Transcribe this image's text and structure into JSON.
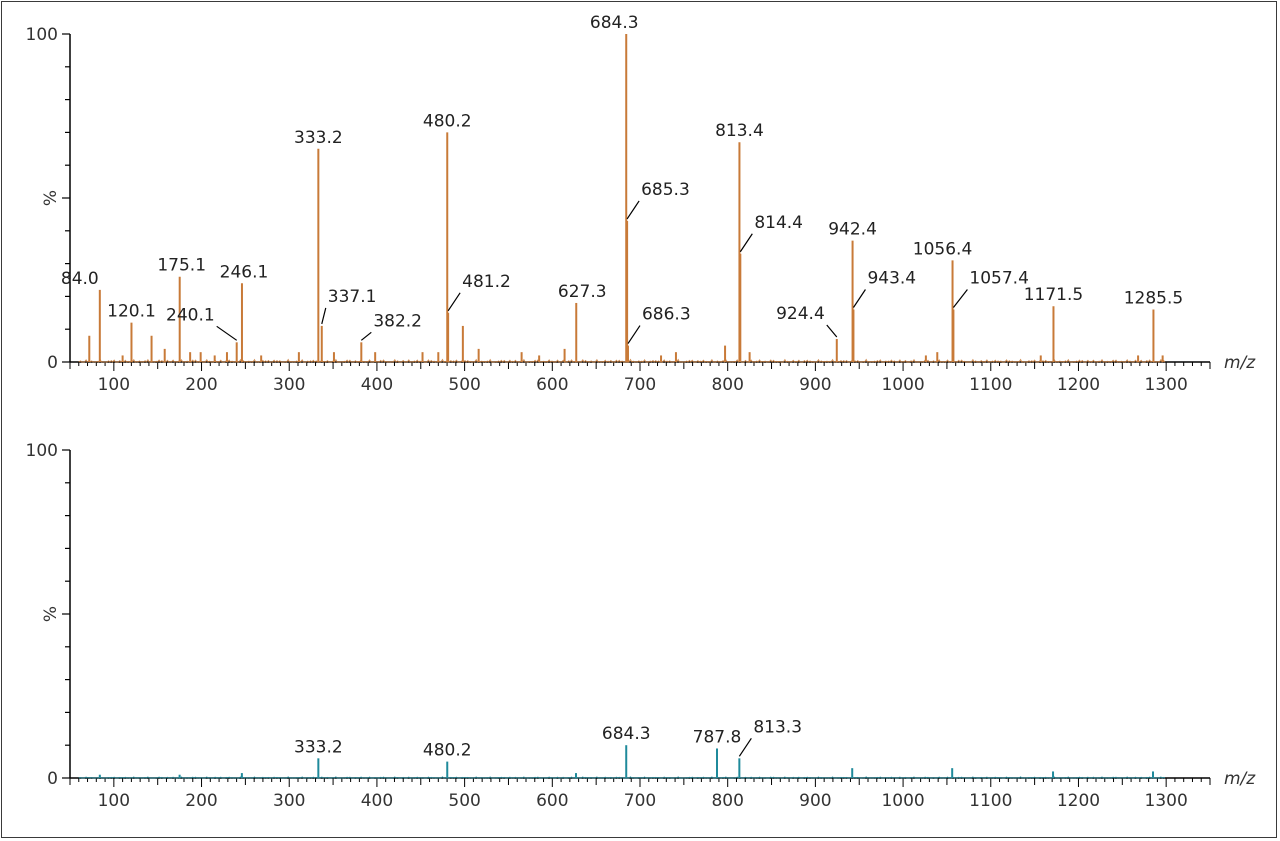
{
  "chart_data": [
    {
      "type": "line",
      "panel": "top",
      "x_unit_label": "m/z",
      "y_unit_label": "%",
      "xlim": [
        50,
        1350
      ],
      "ylim": [
        0,
        100
      ],
      "x_ticks": [
        100,
        200,
        300,
        400,
        500,
        600,
        700,
        800,
        900,
        1000,
        1100,
        1200,
        1300
      ],
      "y_ticks": [
        0,
        100
      ],
      "series_color": "#c87a38",
      "peaks": [
        {
          "mz": 684.3,
          "intensity": 100,
          "label": "684.3"
        },
        {
          "mz": 480.2,
          "intensity": 70,
          "label": "480.2"
        },
        {
          "mz": 333.2,
          "intensity": 65,
          "label": "333.2"
        },
        {
          "mz": 813.4,
          "intensity": 67,
          "label": "813.4"
        },
        {
          "mz": 685.3,
          "intensity": 43,
          "label": "685.3"
        },
        {
          "mz": 942.4,
          "intensity": 37,
          "label": "942.4"
        },
        {
          "mz": 814.4,
          "intensity": 33,
          "label": "814.4"
        },
        {
          "mz": 1056.4,
          "intensity": 31,
          "label": "1056.4"
        },
        {
          "mz": 175.1,
          "intensity": 26,
          "label": "175.1"
        },
        {
          "mz": 246.1,
          "intensity": 24,
          "label": "246.1"
        },
        {
          "mz": 84.0,
          "intensity": 22,
          "label": "84.0"
        },
        {
          "mz": 627.3,
          "intensity": 18,
          "label": "627.3"
        },
        {
          "mz": 1171.5,
          "intensity": 17,
          "label": "1171.5"
        },
        {
          "mz": 1285.5,
          "intensity": 16,
          "label": "1285.5"
        },
        {
          "mz": 943.4,
          "intensity": 16,
          "label": "943.4"
        },
        {
          "mz": 1057.4,
          "intensity": 16,
          "label": "1057.4"
        },
        {
          "mz": 481.2,
          "intensity": 15,
          "label": "481.2"
        },
        {
          "mz": 120.1,
          "intensity": 12,
          "label": "120.1"
        },
        {
          "mz": 337.1,
          "intensity": 11,
          "label": "337.1"
        },
        {
          "mz": 924.4,
          "intensity": 7,
          "label": "924.4"
        },
        {
          "mz": 240.1,
          "intensity": 6,
          "label": "240.1"
        },
        {
          "mz": 382.2,
          "intensity": 6,
          "label": "382.2"
        },
        {
          "mz": 686.3,
          "intensity": 5,
          "label": "686.3"
        },
        {
          "mz": 72,
          "intensity": 8,
          "label": ""
        },
        {
          "mz": 110,
          "intensity": 2,
          "label": ""
        },
        {
          "mz": 143,
          "intensity": 8,
          "label": ""
        },
        {
          "mz": 158,
          "intensity": 4,
          "label": ""
        },
        {
          "mz": 187,
          "intensity": 3,
          "label": ""
        },
        {
          "mz": 199,
          "intensity": 3,
          "label": ""
        },
        {
          "mz": 215,
          "intensity": 2,
          "label": ""
        },
        {
          "mz": 229,
          "intensity": 3,
          "label": ""
        },
        {
          "mz": 268,
          "intensity": 2,
          "label": ""
        },
        {
          "mz": 311,
          "intensity": 3,
          "label": ""
        },
        {
          "mz": 351,
          "intensity": 3,
          "label": ""
        },
        {
          "mz": 398,
          "intensity": 3,
          "label": ""
        },
        {
          "mz": 452,
          "intensity": 3,
          "label": ""
        },
        {
          "mz": 470,
          "intensity": 3,
          "label": ""
        },
        {
          "mz": 498,
          "intensity": 11,
          "label": ""
        },
        {
          "mz": 516,
          "intensity": 4,
          "label": ""
        },
        {
          "mz": 565,
          "intensity": 3,
          "label": ""
        },
        {
          "mz": 585,
          "intensity": 2,
          "label": ""
        },
        {
          "mz": 614,
          "intensity": 4,
          "label": ""
        },
        {
          "mz": 724,
          "intensity": 2,
          "label": ""
        },
        {
          "mz": 741,
          "intensity": 3,
          "label": ""
        },
        {
          "mz": 797,
          "intensity": 5,
          "label": ""
        },
        {
          "mz": 825,
          "intensity": 3,
          "label": ""
        },
        {
          "mz": 1026,
          "intensity": 2,
          "label": ""
        },
        {
          "mz": 1039,
          "intensity": 3,
          "label": ""
        },
        {
          "mz": 1157,
          "intensity": 2,
          "label": ""
        },
        {
          "mz": 1268,
          "intensity": 2,
          "label": ""
        },
        {
          "mz": 1296,
          "intensity": 2,
          "label": ""
        }
      ]
    },
    {
      "type": "line",
      "panel": "bottom",
      "x_unit_label": "m/z",
      "y_unit_label": "%",
      "xlim": [
        50,
        1350
      ],
      "ylim": [
        0,
        100
      ],
      "x_ticks": [
        100,
        200,
        300,
        400,
        500,
        600,
        700,
        800,
        900,
        1000,
        1100,
        1200,
        1300
      ],
      "y_ticks": [
        0,
        100
      ],
      "series_color": "#1f8a9b",
      "peaks": [
        {
          "mz": 684.3,
          "intensity": 10,
          "label": "684.3"
        },
        {
          "mz": 787.8,
          "intensity": 9,
          "label": "787.8"
        },
        {
          "mz": 333.2,
          "intensity": 6,
          "label": "333.2"
        },
        {
          "mz": 813.3,
          "intensity": 6,
          "label": "813.3"
        },
        {
          "mz": 480.2,
          "intensity": 5,
          "label": "480.2"
        },
        {
          "mz": 942,
          "intensity": 3,
          "label": ""
        },
        {
          "mz": 1056,
          "intensity": 3,
          "label": ""
        },
        {
          "mz": 1171,
          "intensity": 2,
          "label": ""
        },
        {
          "mz": 1285,
          "intensity": 2,
          "label": ""
        },
        {
          "mz": 246,
          "intensity": 1.5,
          "label": ""
        },
        {
          "mz": 627,
          "intensity": 1.5,
          "label": ""
        },
        {
          "mz": 84,
          "intensity": 1,
          "label": ""
        },
        {
          "mz": 175,
          "intensity": 1,
          "label": ""
        }
      ]
    }
  ]
}
